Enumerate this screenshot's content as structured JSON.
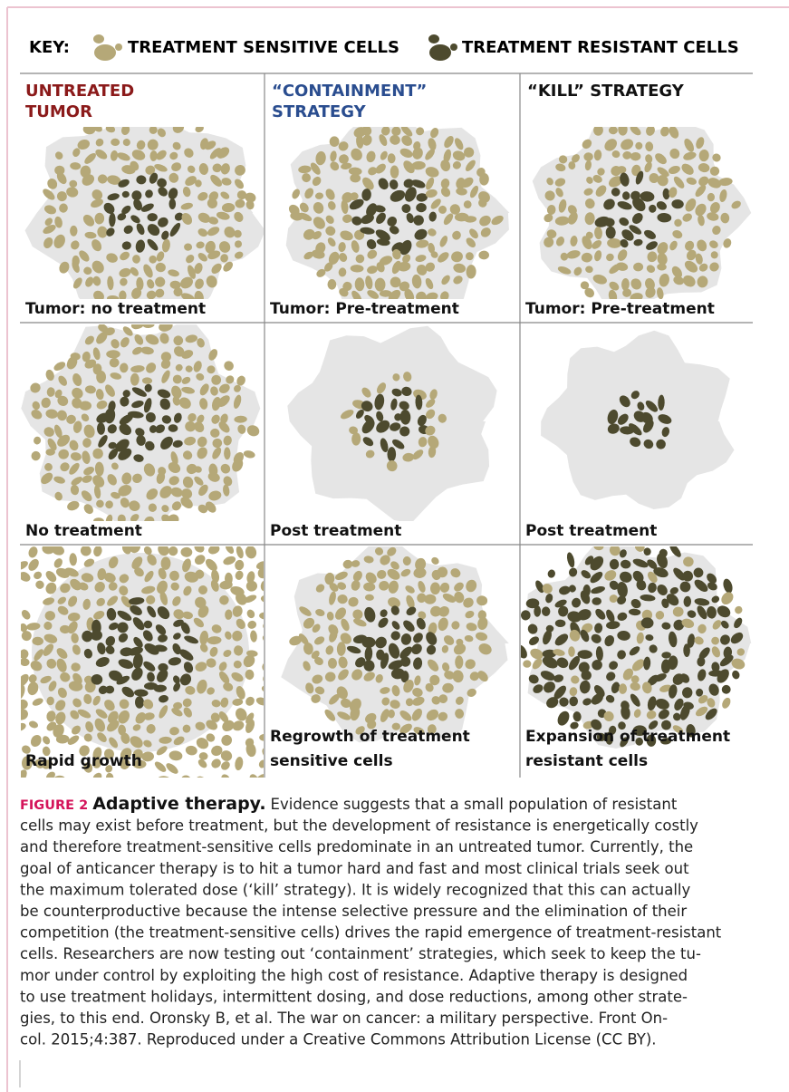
{
  "key": {
    "label": "KEY:",
    "sensitive": "TREATMENT SENSITIVE CELLS",
    "resistant": "TREATMENT RESISTANT CELLS"
  },
  "columns": [
    [
      "UNTREATED",
      "TUMOR"
    ],
    [
      "“CONTAINMENT”",
      "STRATEGY"
    ],
    [
      "“KILL” STRATEGY"
    ]
  ],
  "panels": [
    [
      "Tumor: no treatment"
    ],
    [
      "Tumor: Pre-treatment"
    ],
    [
      "Tumor: Pre-treatment"
    ],
    [
      "No treatment"
    ],
    [
      "Post treatment"
    ],
    [
      "Post treatment"
    ],
    [
      "Rapid growth"
    ],
    [
      "Regrowth of treatment",
      "sensitive cells"
    ],
    [
      "Expansion of treatment",
      "resistant cells"
    ]
  ],
  "caption": {
    "label": "FIGURE 2",
    "title": "Adaptive therapy.",
    "lines": [
      "Evidence suggests that a small population of resistant",
      "cells may exist before treatment, but the development of resistance is energetically costly",
      "and therefore treatment-sensitive cells predominate in an untreated tumor. Currently, the",
      "goal of anticancer therapy is to hit a tumor hard and fast and most clinical trials seek out",
      "the maximum tolerated dose (‘kill’ strategy). It is widely recognized that this can actually",
      "be counterproductive because the intense selective pressure and the elimination of their",
      "competition (the treatment-sensitive cells) drives the rapid emergence of treatment-resistant",
      "cells. Researchers are now testing out ‘containment’ strategies, which seek to keep the tu-",
      "mor under control by exploiting the high cost of resistance. Adaptive therapy is designed",
      "to use treatment holidays, intermittent dosing, and dose reductions, among other strate-",
      "gies, to this end. Oronsky B, et al. The war on cancer: a military perspective. Front On-",
      "col. 2015;4:387. Reproduced under a Creative Commons Attribution License (CC BY)."
    ]
  }
}
